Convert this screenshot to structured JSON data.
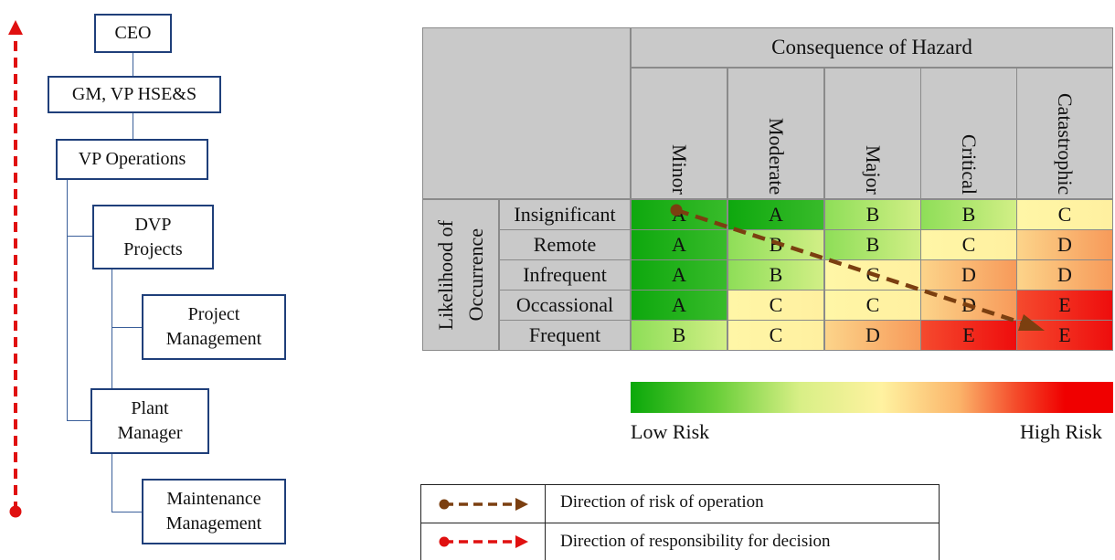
{
  "org_chart": {
    "ceo": "CEO",
    "gm": "GM, VP HSE&S",
    "vp_ops": "VP Operations",
    "dvp": "DVP\nProjects",
    "project_mgmt": "Project\nManagement",
    "plant_mgr": "Plant\nManager",
    "maint_mgmt": "Maintenance\nManagement"
  },
  "matrix": {
    "consequence_header": "Consequence of Hazard",
    "likelihood_header": "Likelihood of\nOccurrence",
    "consequences": [
      "Minor",
      "Moderate",
      "Major",
      "Critical",
      "Catastrophic"
    ],
    "likelihoods": [
      "Insignificant",
      "Remote",
      "Infrequent",
      "Occassional",
      "Frequent"
    ],
    "ratings": [
      [
        "A",
        "A",
        "B",
        "B",
        "C"
      ],
      [
        "A",
        "B",
        "B",
        "C",
        "D"
      ],
      [
        "A",
        "B",
        "C",
        "D",
        "D"
      ],
      [
        "A",
        "C",
        "C",
        "D",
        "E"
      ],
      [
        "B",
        "C",
        "D",
        "E",
        "E"
      ]
    ]
  },
  "scale": {
    "low": "Low Risk",
    "high": "High Risk"
  },
  "legend": {
    "operation": "Direction of risk of operation",
    "responsibility": "Direction of responsibility for decision"
  },
  "colors": {
    "org_border": "#1f3f7a",
    "risk_arrow": "#7b3f10",
    "resp_arrow": "#e01010",
    "header_gray": "#c9c9c9"
  }
}
